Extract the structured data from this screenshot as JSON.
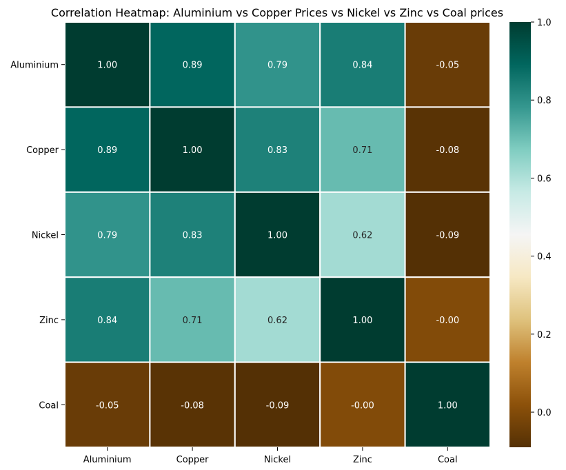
{
  "chart_data": {
    "type": "heatmap",
    "title": "Correlation Heatmap: Aluminium vs Copper Prices vs Nickel vs Zinc vs Coal prices",
    "xlabel": "",
    "ylabel": "",
    "x_categories": [
      "Aluminium",
      "Copper",
      "Nickel",
      "Zinc",
      "Coal"
    ],
    "y_categories": [
      "Aluminium",
      "Copper",
      "Nickel",
      "Zinc",
      "Coal"
    ],
    "values": [
      [
        1.0,
        0.89,
        0.79,
        0.84,
        -0.05
      ],
      [
        0.89,
        1.0,
        0.83,
        0.71,
        -0.08
      ],
      [
        0.79,
        0.83,
        1.0,
        0.62,
        -0.09
      ],
      [
        0.84,
        0.71,
        0.62,
        1.0,
        -0.0
      ],
      [
        -0.05,
        -0.08,
        -0.09,
        -0.0,
        1.0
      ]
    ],
    "value_format": "0.00",
    "colormap": "BrBG",
    "colorbar": {
      "min": -0.09,
      "max": 1.0,
      "ticks": [
        0.0,
        0.2,
        0.4,
        0.6,
        0.8,
        1.0
      ],
      "tick_labels": [
        "0.0",
        "0.2",
        "0.4",
        "0.6",
        "0.8",
        "1.0"
      ]
    },
    "cell_border_color": "#ffffff",
    "grid": false
  }
}
